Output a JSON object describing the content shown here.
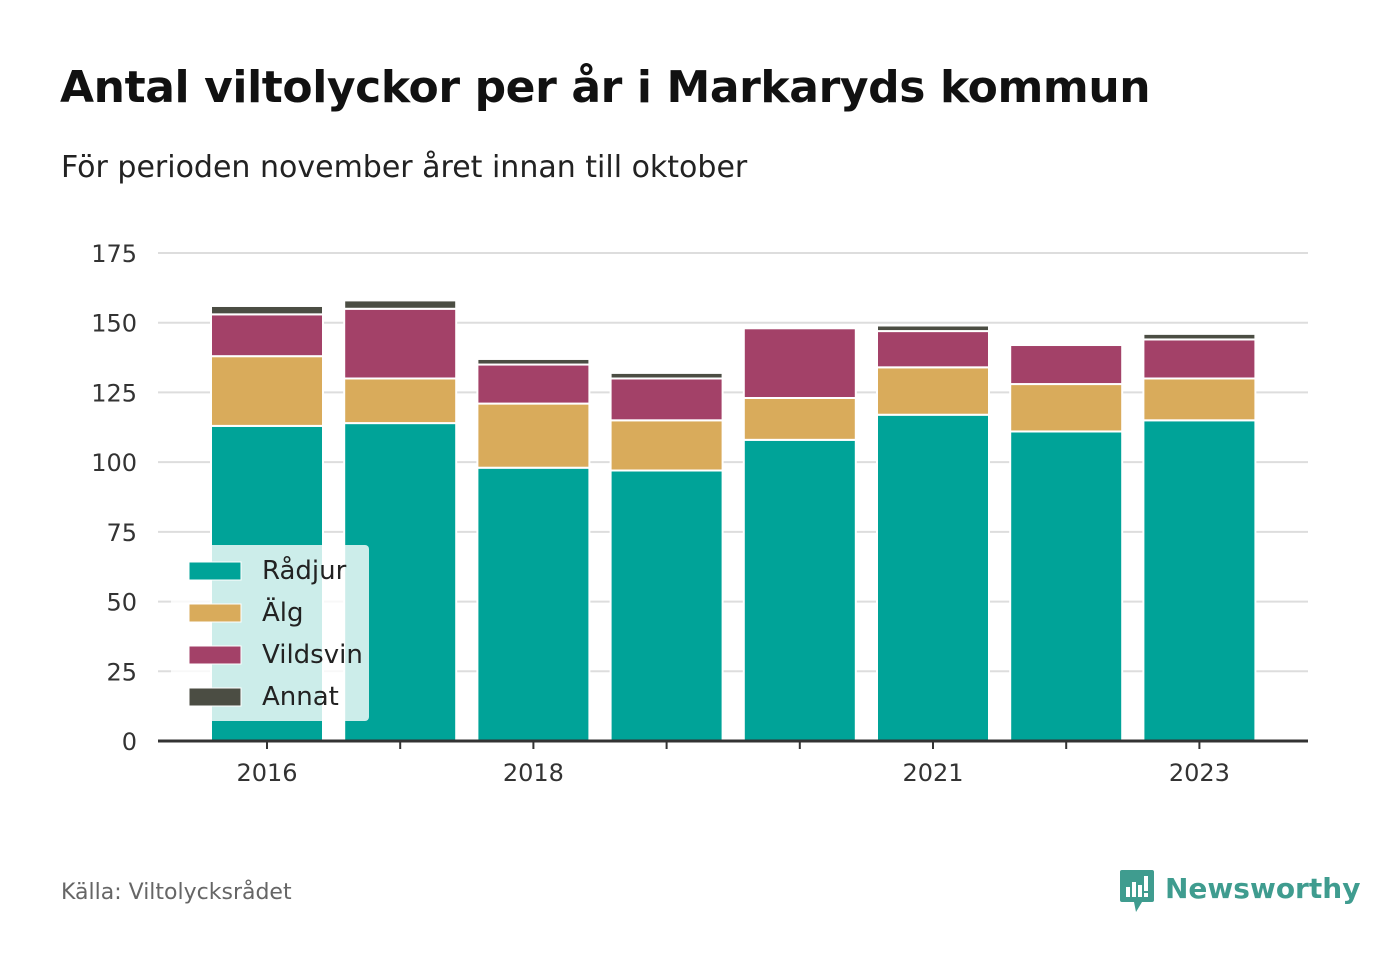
{
  "title": "Antal viltolyckor per år i Markaryds kommun",
  "subtitle": "För perioden november året innan till oktober",
  "source": "Källa: Viltolycksrådet",
  "brand": "Newsworthy",
  "colors": {
    "Rådjur": "#00a398",
    "Älg": "#d9ab5b",
    "Vildsvin": "#a34168",
    "Annat": "#4b4d43",
    "brand": "#3f9c8f",
    "grid": "#dddddd",
    "axis": "#333333"
  },
  "chart_data": {
    "type": "bar",
    "stacked": true,
    "x": [
      2016,
      2017,
      2018,
      2019,
      2020,
      2021,
      2022,
      2023
    ],
    "x_tick_labels": [
      "2016",
      "2018",
      "2021",
      "2023"
    ],
    "y_ticks": [
      0,
      25,
      50,
      75,
      100,
      125,
      150,
      175
    ],
    "ylim": [
      0,
      175
    ],
    "grid": true,
    "legend_position": "bottom-left",
    "series": [
      {
        "name": "Rådjur",
        "values": [
          113,
          114,
          98,
          97,
          108,
          117,
          111,
          115
        ]
      },
      {
        "name": "Älg",
        "values": [
          25,
          16,
          23,
          18,
          15,
          17,
          17,
          15
        ]
      },
      {
        "name": "Vildsvin",
        "values": [
          15,
          25,
          14,
          15,
          25,
          13,
          14,
          14
        ]
      },
      {
        "name": "Annat",
        "values": [
          3,
          3,
          2,
          2,
          0,
          2,
          0,
          2
        ]
      }
    ]
  }
}
